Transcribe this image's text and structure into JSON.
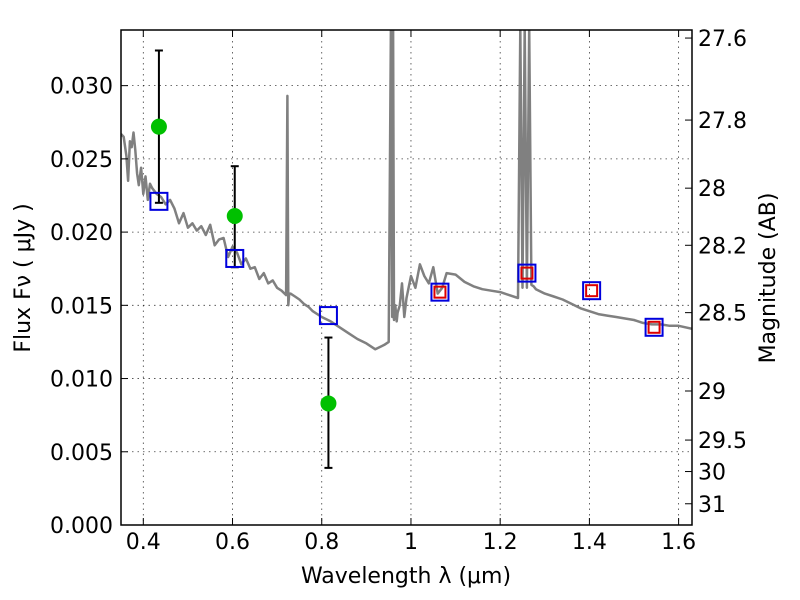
{
  "chart_data": {
    "type": "line",
    "xlabel": "Wavelength  λ (μm)",
    "ylabel": "Flux  Fν  ( μJy )",
    "y2label": "Magnitude (AB)",
    "xlim": [
      0.35,
      1.63
    ],
    "ylim": [
      0.0,
      0.0338
    ],
    "grid": true,
    "x_ticks": [
      0.4,
      0.6,
      0.8,
      1.0,
      1.2,
      1.4,
      1.6
    ],
    "x_tick_labels": [
      "0.4",
      "0.6",
      "0.8",
      "1",
      "1.2",
      "1.4",
      "1.6"
    ],
    "y_ticks": [
      0.0,
      0.005,
      0.01,
      0.015,
      0.02,
      0.025,
      0.03
    ],
    "y_tick_labels": [
      "0.000",
      "0.005",
      "0.010",
      "0.015",
      "0.020",
      "0.025",
      "0.030"
    ],
    "y2_ticks": [
      {
        "label": "27.6",
        "flux": 0.03325
      },
      {
        "label": "27.8",
        "flux": 0.02765
      },
      {
        "label": "28",
        "flux": 0.023
      },
      {
        "label": "28.2",
        "flux": 0.0191
      },
      {
        "label": "28.5",
        "flux": 0.0145
      },
      {
        "label": "29",
        "flux": 0.00915
      },
      {
        "label": "29.5",
        "flux": 0.0058
      },
      {
        "label": "30",
        "flux": 0.00365
      },
      {
        "label": "31",
        "flux": 0.00145
      }
    ],
    "series": [
      {
        "kind": "line",
        "color": "#808080",
        "x": [
          0.35,
          0.356,
          0.362,
          0.366,
          0.37,
          0.374,
          0.378,
          0.382,
          0.386,
          0.39,
          0.395,
          0.4,
          0.405,
          0.41,
          0.415,
          0.42,
          0.43,
          0.44,
          0.45,
          0.46,
          0.47,
          0.48,
          0.49,
          0.5,
          0.51,
          0.52,
          0.53,
          0.54,
          0.55,
          0.56,
          0.57,
          0.58,
          0.59,
          0.6,
          0.61,
          0.62,
          0.63,
          0.64,
          0.65,
          0.66,
          0.67,
          0.68,
          0.69,
          0.7,
          0.71,
          0.72,
          0.723,
          0.725,
          0.727,
          0.73,
          0.74,
          0.75,
          0.76,
          0.77,
          0.78,
          0.8,
          0.82,
          0.84,
          0.86,
          0.88,
          0.9,
          0.92,
          0.94,
          0.95,
          0.955,
          0.958,
          0.96,
          0.962,
          0.965,
          0.968,
          0.97,
          0.975,
          0.98,
          0.985,
          0.99,
          1.0,
          1.01,
          1.02,
          1.03,
          1.04,
          1.05,
          1.06,
          1.07,
          1.08,
          1.1,
          1.12,
          1.14,
          1.16,
          1.18,
          1.2,
          1.22,
          1.24,
          1.245,
          1.25,
          1.255,
          1.26,
          1.265,
          1.27,
          1.275,
          1.28,
          1.3,
          1.32,
          1.34,
          1.36,
          1.38,
          1.4,
          1.42,
          1.44,
          1.46,
          1.48,
          1.5,
          1.52,
          1.54,
          1.56,
          1.58,
          1.6,
          1.63
        ],
        "y": [
          0.0267,
          0.0265,
          0.0252,
          0.0235,
          0.0262,
          0.0258,
          0.0268,
          0.0256,
          0.024,
          0.0232,
          0.0244,
          0.0226,
          0.0238,
          0.0222,
          0.0233,
          0.023,
          0.0226,
          0.0224,
          0.0219,
          0.0222,
          0.0216,
          0.0206,
          0.0213,
          0.0203,
          0.0206,
          0.0201,
          0.0204,
          0.0198,
          0.0205,
          0.0191,
          0.0195,
          0.0196,
          0.0183,
          0.019,
          0.0186,
          0.0178,
          0.0182,
          0.0175,
          0.0176,
          0.0168,
          0.0172,
          0.0165,
          0.0167,
          0.0162,
          0.016,
          0.0157,
          0.0293,
          0.015,
          0.0158,
          0.0158,
          0.0156,
          0.0154,
          0.0151,
          0.0149,
          0.0146,
          0.0142,
          0.0139,
          0.0135,
          0.0131,
          0.0127,
          0.0124,
          0.012,
          0.0123,
          0.0125,
          0.034,
          0.0142,
          0.034,
          0.014,
          0.015,
          0.0139,
          0.0145,
          0.015,
          0.0165,
          0.0142,
          0.0155,
          0.017,
          0.0162,
          0.0178,
          0.017,
          0.0165,
          0.0176,
          0.0158,
          0.0162,
          0.0172,
          0.0171,
          0.0166,
          0.0163,
          0.0161,
          0.016,
          0.0159,
          0.0157,
          0.0155,
          0.034,
          0.0162,
          0.034,
          0.0162,
          0.034,
          0.0164,
          0.0163,
          0.0161,
          0.0158,
          0.0156,
          0.0154,
          0.0151,
          0.0148,
          0.0146,
          0.0144,
          0.0143,
          0.0142,
          0.0141,
          0.014,
          0.0138,
          0.0137,
          0.0137,
          0.0136,
          0.0136,
          0.0134
        ]
      },
      {
        "kind": "errorbar",
        "color": "#00c000",
        "x": [
          0.435,
          0.605,
          0.815
        ],
        "y": [
          0.0272,
          0.0211,
          0.0083
        ],
        "yerr_low": [
          0.0052,
          0.0035,
          0.0044
        ],
        "yerr_high": [
          0.0052,
          0.0034,
          0.0045
        ]
      },
      {
        "kind": "open-square",
        "color": "#0000dd",
        "x": [
          0.435,
          0.605,
          0.815,
          1.065,
          1.26,
          1.405,
          1.545
        ],
        "y": [
          0.0221,
          0.0182,
          0.0143,
          0.0159,
          0.0172,
          0.016,
          0.0135
        ]
      },
      {
        "kind": "open-square",
        "color": "#dd0000",
        "x": [
          1.065,
          1.26,
          1.405,
          1.545
        ],
        "y": [
          0.0159,
          0.0172,
          0.016,
          0.0135
        ]
      }
    ]
  }
}
